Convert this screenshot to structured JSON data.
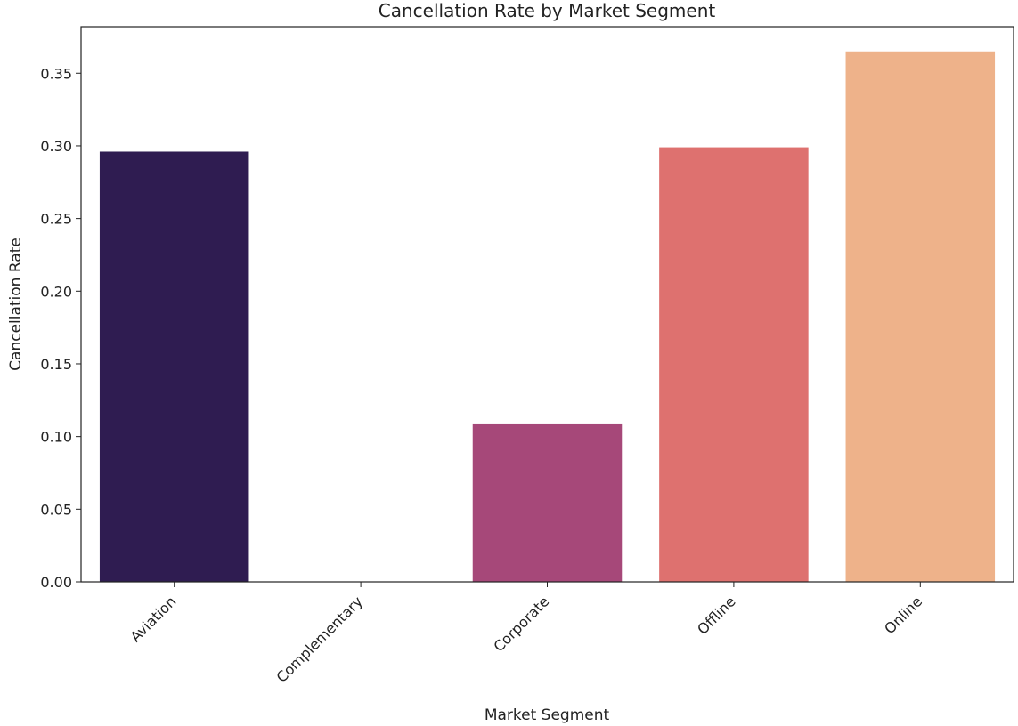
{
  "chart_data": {
    "type": "bar",
    "title": "Cancellation Rate by Market Segment",
    "xlabel": "Market Segment",
    "ylabel": "Cancellation Rate",
    "categories": [
      "Aviation",
      "Complementary",
      "Corporate",
      "Offline",
      "Online"
    ],
    "values": [
      0.296,
      0.0,
      0.109,
      0.299,
      0.365
    ],
    "colors": [
      "#2f1c51",
      "#7f2f73",
      "#a64879",
      "#de716f",
      "#eeb28a"
    ],
    "ylim": [
      0,
      0.382
    ],
    "yticks": [
      0.0,
      0.05,
      0.1,
      0.15,
      0.2,
      0.25,
      0.3,
      0.35
    ],
    "ytick_labels": [
      "0.00",
      "0.05",
      "0.10",
      "0.15",
      "0.20",
      "0.25",
      "0.30",
      "0.35"
    ],
    "grid": false,
    "legend": "none"
  }
}
